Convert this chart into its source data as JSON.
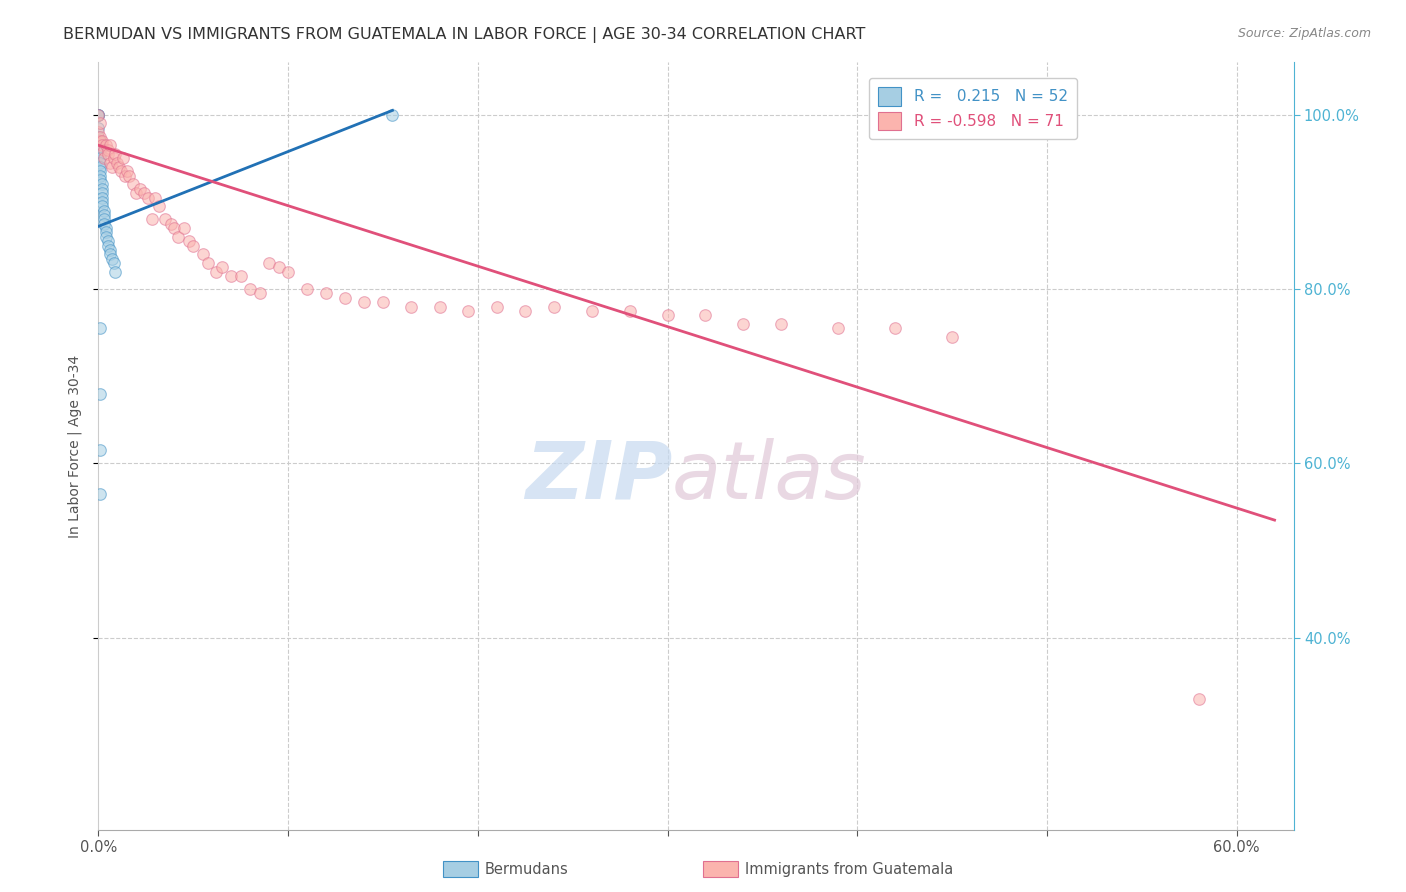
{
  "title": "BERMUDAN VS IMMIGRANTS FROM GUATEMALA IN LABOR FORCE | AGE 30-34 CORRELATION CHART",
  "source": "Source: ZipAtlas.com",
  "ylabel": "In Labor Force | Age 30-34",
  "xlim": [
    0.0,
    0.63
  ],
  "ylim": [
    0.18,
    1.06
  ],
  "blue_line_x": [
    0.0,
    0.155
  ],
  "blue_line_y": [
    0.872,
    1.005
  ],
  "pink_line_x": [
    0.0,
    0.62
  ],
  "pink_line_y": [
    0.965,
    0.535
  ],
  "bermudans_x": [
    0.0,
    0.0,
    0.0,
    0.0,
    0.0,
    0.001,
    0.001,
    0.001,
    0.001,
    0.001,
    0.001,
    0.001,
    0.001,
    0.001,
    0.002,
    0.002,
    0.002,
    0.002,
    0.002,
    0.002,
    0.003,
    0.003,
    0.003,
    0.003,
    0.004,
    0.004,
    0.004,
    0.005,
    0.005,
    0.006,
    0.006,
    0.007,
    0.008,
    0.009,
    0.001,
    0.001,
    0.001,
    0.001,
    0.155
  ],
  "bermudans_y": [
    1.0,
    1.0,
    1.0,
    0.985,
    0.975,
    0.97,
    0.96,
    0.955,
    0.95,
    0.945,
    0.94,
    0.935,
    0.93,
    0.925,
    0.92,
    0.915,
    0.91,
    0.905,
    0.9,
    0.895,
    0.89,
    0.885,
    0.88,
    0.875,
    0.87,
    0.865,
    0.86,
    0.855,
    0.85,
    0.845,
    0.84,
    0.835,
    0.83,
    0.82,
    0.755,
    0.68,
    0.615,
    0.565,
    1.0
  ],
  "guatemala_x": [
    0.0,
    0.0,
    0.001,
    0.001,
    0.001,
    0.002,
    0.002,
    0.003,
    0.003,
    0.004,
    0.005,
    0.005,
    0.006,
    0.006,
    0.007,
    0.008,
    0.009,
    0.01,
    0.011,
    0.012,
    0.013,
    0.014,
    0.015,
    0.016,
    0.018,
    0.02,
    0.022,
    0.024,
    0.026,
    0.028,
    0.03,
    0.032,
    0.035,
    0.038,
    0.04,
    0.042,
    0.045,
    0.048,
    0.05,
    0.055,
    0.058,
    0.062,
    0.065,
    0.07,
    0.075,
    0.08,
    0.085,
    0.09,
    0.095,
    0.1,
    0.11,
    0.12,
    0.13,
    0.14,
    0.15,
    0.165,
    0.18,
    0.195,
    0.21,
    0.225,
    0.24,
    0.26,
    0.28,
    0.3,
    0.32,
    0.34,
    0.36,
    0.39,
    0.42,
    0.45,
    0.58
  ],
  "guatemala_y": [
    1.0,
    0.98,
    0.99,
    0.97,
    0.975,
    0.97,
    0.965,
    0.96,
    0.95,
    0.965,
    0.96,
    0.955,
    0.965,
    0.945,
    0.94,
    0.95,
    0.955,
    0.945,
    0.94,
    0.935,
    0.95,
    0.93,
    0.935,
    0.93,
    0.92,
    0.91,
    0.915,
    0.91,
    0.905,
    0.88,
    0.905,
    0.895,
    0.88,
    0.875,
    0.87,
    0.86,
    0.87,
    0.855,
    0.85,
    0.84,
    0.83,
    0.82,
    0.825,
    0.815,
    0.815,
    0.8,
    0.795,
    0.83,
    0.825,
    0.82,
    0.8,
    0.795,
    0.79,
    0.785,
    0.785,
    0.78,
    0.78,
    0.775,
    0.78,
    0.775,
    0.78,
    0.775,
    0.775,
    0.77,
    0.77,
    0.76,
    0.76,
    0.755,
    0.755,
    0.745,
    0.33
  ],
  "dot_size": 70,
  "dot_alpha": 0.55,
  "blue_color": "#a6cee3",
  "pink_color": "#fbb4ae",
  "blue_edge": "#4292c6",
  "pink_edge": "#e07090",
  "blue_line_color": "#2171b5",
  "pink_line_color": "#e0507a",
  "grid_color": "#cccccc",
  "background_color": "#ffffff",
  "title_fontsize": 11.5,
  "axis_fontsize": 10,
  "tick_fontsize": 10.5,
  "right_tick_color": "#4eb3d3",
  "watermark_zip_color": "#c6d9f0",
  "watermark_atlas_color": "#e0c8d8"
}
